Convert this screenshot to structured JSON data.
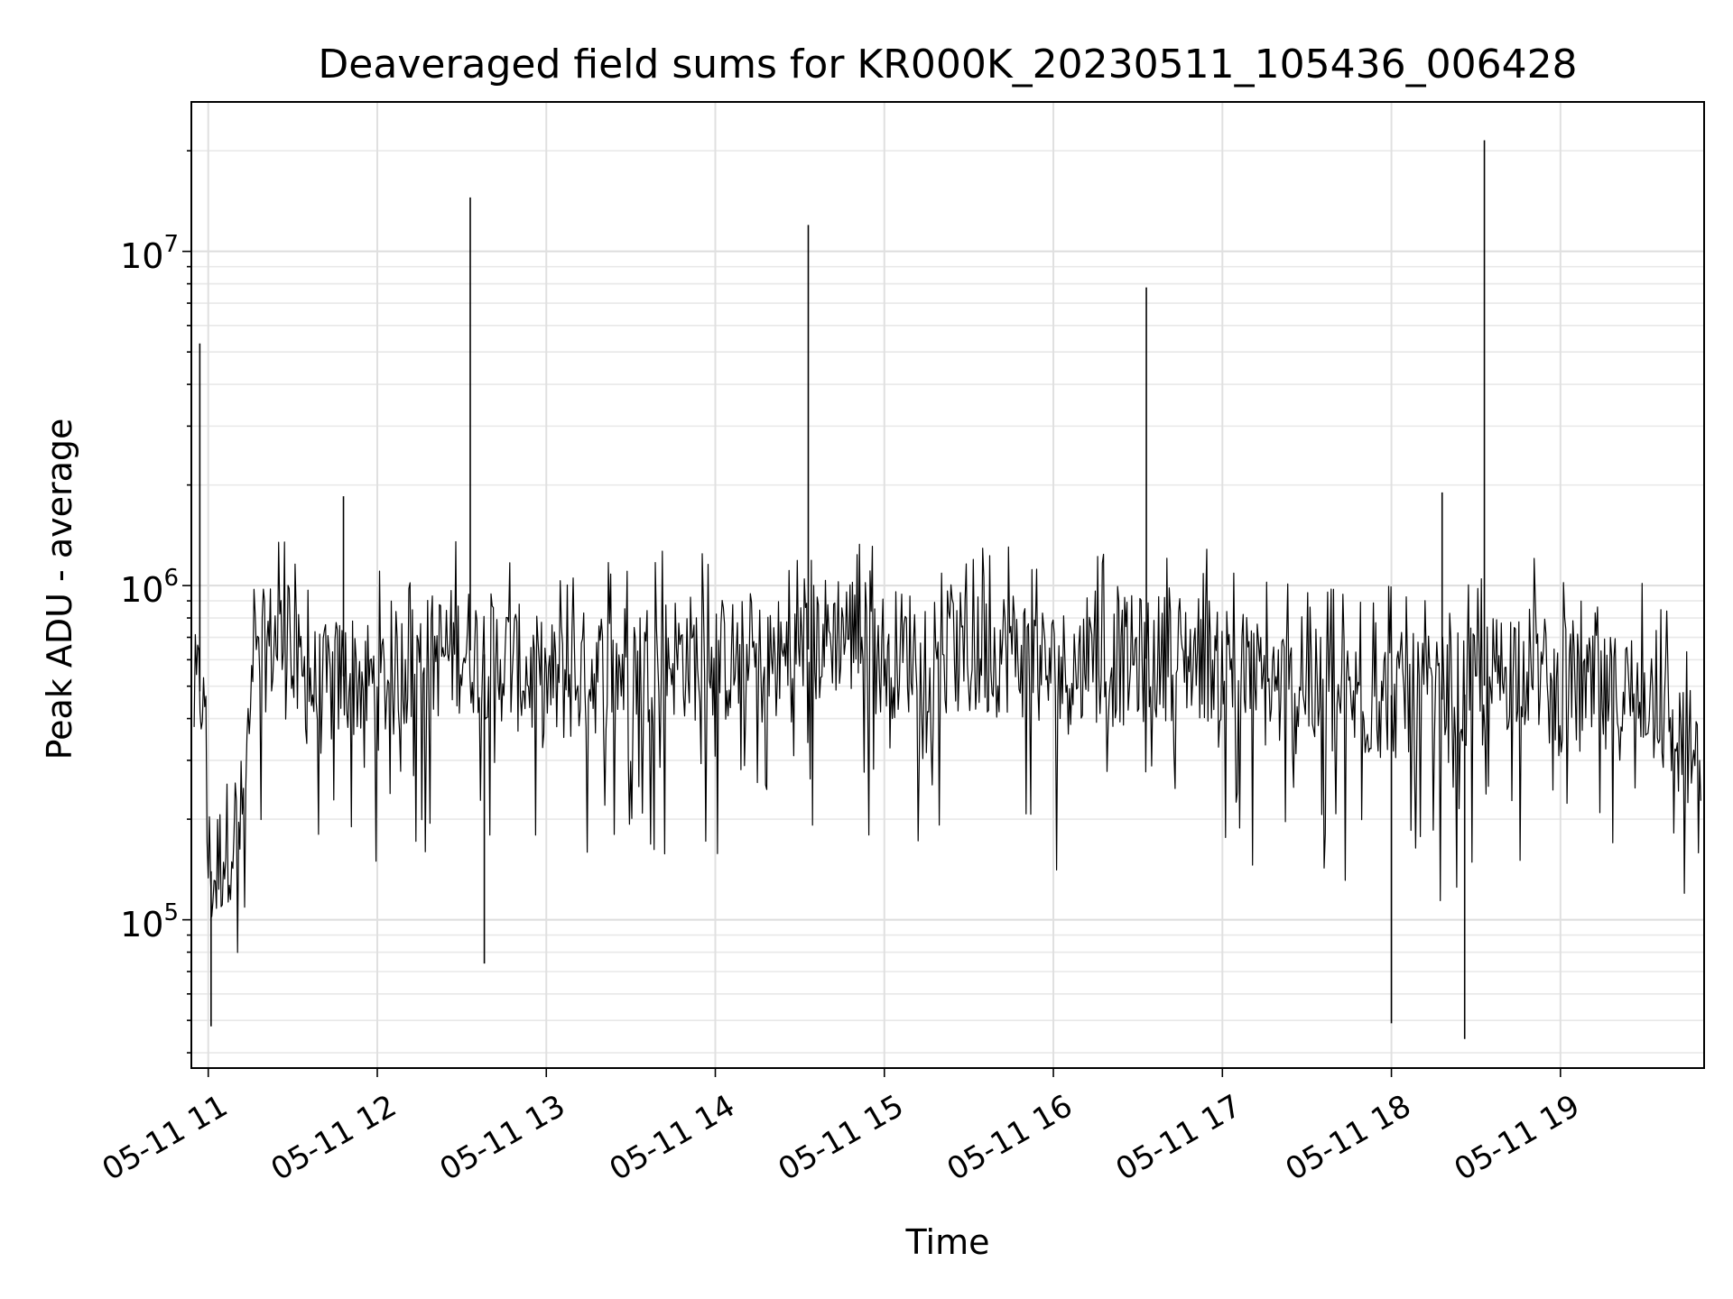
{
  "chart_data": {
    "type": "line",
    "title": "Deaveraged field sums for KR000K_20230511_105436_006428",
    "xlabel": "Time",
    "ylabel": "Peak ADU - average",
    "yscale": "log",
    "ylim": [
      36000,
      28000000
    ],
    "xlim": [
      "2023-05-11 10:54",
      "2023-05-11 19:51"
    ],
    "xtick_labels": [
      "05-11 11",
      "05-11 12",
      "05-11 13",
      "05-11 14",
      "05-11 15",
      "05-11 16",
      "05-11 17",
      "05-11 18",
      "05-11 19"
    ],
    "ytick_labels": [
      {
        "base": "10",
        "exp": "5"
      },
      {
        "base": "10",
        "exp": "6"
      },
      {
        "base": "10",
        "exp": "7"
      }
    ],
    "grid": true,
    "line_color": "#000000",
    "series": [
      {
        "x": [
          "2023-05-11 10:55",
          "2023-05-11 10:58",
          "2023-05-11 11:00",
          "2023-05-11 11:02",
          "2023-05-11 11:05",
          "2023-05-11 11:08",
          "2023-05-11 11:12",
          "2023-05-11 11:15",
          "2023-05-11 11:20",
          "2023-05-11 11:25",
          "2023-05-11 11:30",
          "2023-05-11 11:40",
          "2023-05-11 11:50",
          "2023-05-11 12:00",
          "2023-05-11 12:15",
          "2023-05-11 12:30",
          "2023-05-11 12:45",
          "2023-05-11 13:00",
          "2023-05-11 13:15",
          "2023-05-11 13:30",
          "2023-05-11 13:45",
          "2023-05-11 14:00",
          "2023-05-11 14:15",
          "2023-05-11 14:30",
          "2023-05-11 14:45",
          "2023-05-11 15:00",
          "2023-05-11 15:15",
          "2023-05-11 15:30",
          "2023-05-11 15:45",
          "2023-05-11 16:00",
          "2023-05-11 16:15",
          "2023-05-11 16:30",
          "2023-05-11 16:45",
          "2023-05-11 17:00",
          "2023-05-11 17:15",
          "2023-05-11 17:30",
          "2023-05-11 17:45",
          "2023-05-11 18:00",
          "2023-05-11 18:15",
          "2023-05-11 18:30",
          "2023-05-11 18:45",
          "2023-05-11 19:00",
          "2023-05-11 19:15",
          "2023-05-11 19:30",
          "2023-05-11 19:45",
          "2023-05-11 19:50"
        ],
        "values": [
          450000,
          500000,
          150000,
          130000,
          160000,
          180000,
          200000,
          400000,
          650000,
          700000,
          550000,
          480000,
          550000,
          500000,
          600000,
          650000,
          600000,
          500000,
          550000,
          580000,
          620000,
          600000,
          580000,
          620000,
          750000,
          620000,
          650000,
          600000,
          650000,
          550000,
          580000,
          600000,
          620000,
          600000,
          500000,
          480000,
          450000,
          470000,
          450000,
          480000,
          600000,
          480000,
          450000,
          500000,
          320000,
          300000
        ]
      }
    ],
    "spikes": [
      {
        "x": "2023-05-11 10:57",
        "y": 5300000
      },
      {
        "x": "2023-05-11 11:48",
        "y": 1850000
      },
      {
        "x": "2023-05-11 12:33",
        "y": 14500000
      },
      {
        "x": "2023-05-11 14:33",
        "y": 12000000
      },
      {
        "x": "2023-05-11 16:33",
        "y": 7800000
      },
      {
        "x": "2023-05-11 18:18",
        "y": 1900000
      },
      {
        "x": "2023-05-11 18:33",
        "y": 21500000
      }
    ],
    "dips": [
      {
        "x": "2023-05-11 11:01",
        "y": 48000
      },
      {
        "x": "2023-05-11 12:38",
        "y": 74000
      },
      {
        "x": "2023-05-11 18:00",
        "y": 49000
      },
      {
        "x": "2023-05-11 18:26",
        "y": 44000
      }
    ]
  }
}
